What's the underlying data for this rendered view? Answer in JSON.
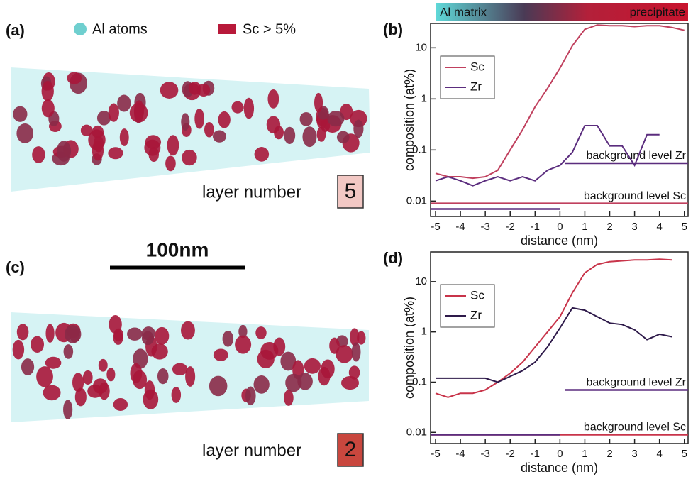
{
  "legend": {
    "al_atoms": "Al atoms",
    "sc": "Sc > 5%"
  },
  "scale_bar": "100nm",
  "panels": [
    {
      "label": "(a)",
      "layer_text": "layer number",
      "layer": 5
    },
    {
      "label": "(c)",
      "layer_text": "layer number",
      "layer": 2
    }
  ],
  "chart_data": [
    {
      "type": "line",
      "panel_label": "(b)",
      "header_left": "Al matrix",
      "header_right": "precipitate",
      "x_label": "distance (nm)",
      "y_label": "composition (at%)",
      "log_y": true,
      "xlim": [
        -5.2,
        5.15
      ],
      "ylim": [
        0.005,
        30
      ],
      "xticks": [
        -5,
        -4,
        -3,
        -2,
        -1,
        0,
        1,
        2,
        3,
        4,
        5
      ],
      "yticks": [
        0.01,
        0.1,
        1,
        10
      ],
      "x": [
        -5,
        -4.5,
        -4,
        -3.5,
        -3,
        -2.5,
        -2,
        -1.5,
        -1,
        -0.5,
        0,
        0.5,
        1,
        1.5,
        2,
        2.5,
        3,
        3.5,
        4,
        4.5,
        5
      ],
      "series": [
        {
          "name": "Sc",
          "color": "#c0405e",
          "values": [
            0.035,
            0.03,
            0.03,
            0.028,
            0.03,
            0.04,
            0.1,
            0.25,
            0.7,
            1.6,
            4,
            11,
            23,
            28,
            27,
            27,
            26,
            27,
            27,
            25,
            22
          ]
        },
        {
          "name": "Zr",
          "color": "#5b2d7e",
          "values": [
            0.025,
            0.03,
            0.025,
            0.02,
            0.025,
            0.03,
            0.025,
            0.03,
            0.025,
            0.04,
            0.05,
            0.09,
            0.3,
            0.3,
            0.12,
            0.12,
            0.05,
            0.2,
            0.2,
            null,
            null
          ]
        }
      ],
      "reference_lines": [
        {
          "label": "background level Zr",
          "value": 0.055,
          "color": "#5b2d7e",
          "x": [
            0.2,
            5.15
          ]
        },
        {
          "label": "background level Sc",
          "value": 0.009,
          "color": "#c0405e",
          "x": [
            -5.2,
            5.15
          ]
        },
        {
          "value": 0.007,
          "color": "#5b2d7e",
          "x": [
            -5.2,
            0
          ]
        }
      ]
    },
    {
      "type": "line",
      "panel_label": "(d)",
      "x_label": "distance (nm)",
      "y_label": "composition (at%)",
      "log_y": true,
      "xlim": [
        -5.2,
        5.15
      ],
      "ylim": [
        0.006,
        39
      ],
      "xticks": [
        -5,
        -4,
        -3,
        -2,
        -1,
        0,
        1,
        2,
        3,
        4,
        5
      ],
      "yticks": [
        0.01,
        0.1,
        1,
        10
      ],
      "x": [
        -5,
        -4.5,
        -4,
        -3.5,
        -3,
        -2.5,
        -2,
        -1.5,
        -1,
        -0.5,
        0,
        0.5,
        1,
        1.5,
        2,
        2.5,
        3,
        3.5,
        4,
        4.5
      ],
      "series": [
        {
          "name": "Sc",
          "color": "#c8344a",
          "values": [
            0.06,
            0.05,
            0.06,
            0.06,
            0.07,
            0.1,
            0.15,
            0.25,
            0.5,
            1,
            2,
            6,
            15,
            22,
            25,
            26,
            27,
            27,
            28,
            27
          ]
        },
        {
          "name": "Zr",
          "color": "#2e1a4a",
          "values": [
            0.12,
            0.12,
            0.12,
            0.12,
            0.12,
            0.1,
            0.13,
            0.17,
            0.25,
            0.5,
            1.2,
            3,
            2.7,
            2,
            1.5,
            1.4,
            1.1,
            0.7,
            0.9,
            0.8
          ]
        }
      ],
      "reference_lines": [
        {
          "label": "background level Zr",
          "value": 0.07,
          "color": "#5b2d7e",
          "x": [
            0.2,
            5.15
          ]
        },
        {
          "label": "background level Sc",
          "value": 0.009,
          "color": "#c8344a",
          "x": [
            -5.2,
            5.15
          ]
        },
        {
          "value": 0.009,
          "color": "#5b2d7e",
          "x": [
            -5.2,
            0
          ]
        }
      ]
    }
  ]
}
